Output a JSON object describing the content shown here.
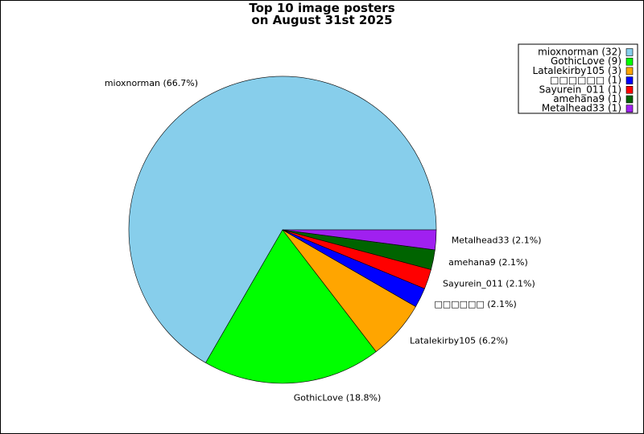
{
  "chart_data": {
    "type": "pie",
    "title_lines": [
      "Top 10 image posters",
      "on August 31st 2025"
    ],
    "slices": [
      {
        "name": "mioxnorman",
        "value": 32,
        "percent": "66.7%",
        "color": "#87CEEB"
      },
      {
        "name": "GothicLove",
        "value": 9,
        "percent": "18.8%",
        "color": "#00FF00"
      },
      {
        "name": "Latalekirby105",
        "value": 3,
        "percent": "6.2%",
        "color": "#FFA500"
      },
      {
        "name": "□□□□□□",
        "value": 1,
        "percent": "2.1%",
        "color": "#0000FF"
      },
      {
        "name": "Sayurein_011",
        "value": 1,
        "percent": "2.1%",
        "color": "#FF0000"
      },
      {
        "name": "amehana9",
        "value": 1,
        "percent": "2.1%",
        "color": "#006400"
      },
      {
        "name": "Metalhead33",
        "value": 1,
        "percent": "2.1%",
        "color": "#A020F0"
      }
    ],
    "legend_placement": "top-right"
  }
}
